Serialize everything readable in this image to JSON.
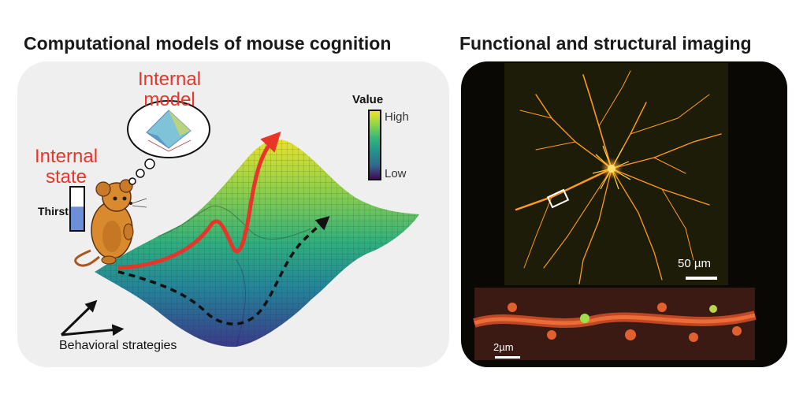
{
  "left_panel": {
    "title": "Computational models of mouse cognition",
    "internal_model_label": "Internal\nmodel",
    "internal_state_label": "Internal\nstate",
    "thirst_label": "Thirst",
    "thirst_level": 0.55,
    "colorbar": {
      "title": "Value",
      "high_label": "High",
      "low_label": "Low",
      "colors": [
        "#f7e225",
        "#8fd744",
        "#35b779",
        "#21918c",
        "#31688e",
        "#443983",
        "#440154"
      ]
    },
    "axes_label": "Behavioral strategies",
    "arrow_colors": {
      "red": "#e8352a",
      "black": "#111111"
    }
  },
  "right_panel": {
    "title": "Functional and structural imaging",
    "scale_bar_main": "50 µm",
    "scale_bar_inset": "2µm",
    "neuron_color": "#ff9a1f"
  }
}
